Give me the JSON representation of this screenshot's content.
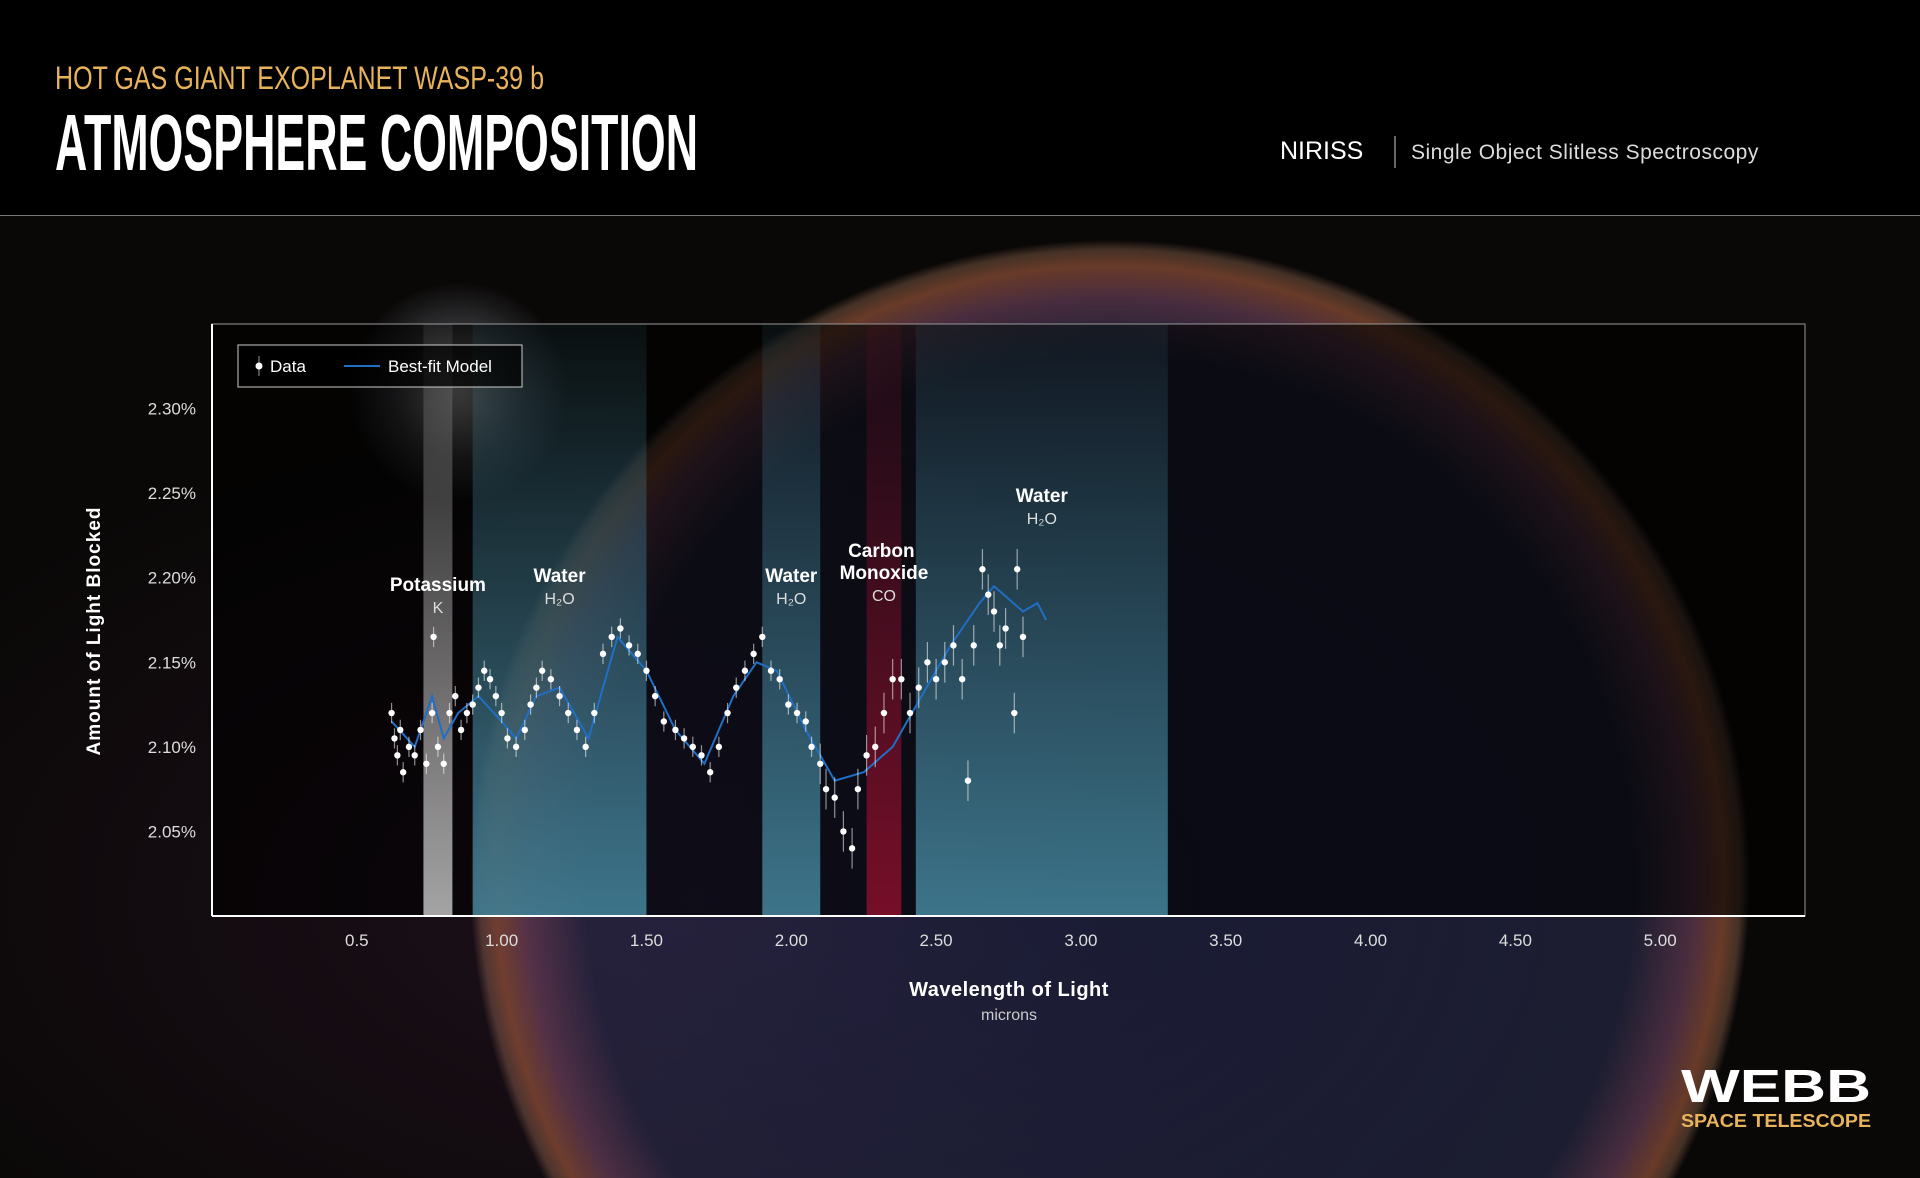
{
  "chart_data": {
    "type": "scatter",
    "subtitle": "HOT GAS GIANT EXOPLANET WASP-39 b",
    "title": "ATMOSPHERE COMPOSITION",
    "instrument": "NIRISS",
    "mode": "Single Object Slitless Spectroscopy",
    "ylabel": "Amount of Light Blocked",
    "xlabel": "Wavelength of Light",
    "xunit": "microns",
    "xlim": [
      0,
      5.5
    ],
    "ylim": [
      2.0,
      2.35
    ],
    "xticks": [
      0.5,
      {
        "value": 1,
        "label": "1.00"
      },
      {
        "value": 1.5,
        "label": "1.50"
      },
      {
        "value": 2,
        "label": "2.00"
      },
      {
        "value": 2.5,
        "label": "2.50"
      },
      {
        "value": 3,
        "label": "3.00"
      },
      {
        "value": 3.5,
        "label": "3.50"
      },
      {
        "value": 4,
        "label": "4.00"
      },
      {
        "value": 4.5,
        "label": "4.50"
      },
      {
        "value": 5,
        "label": "5.00"
      }
    ],
    "yticks": [
      {
        "value": 2.05,
        "label": "2.05%"
      },
      {
        "value": 2.1,
        "label": "2.10%"
      },
      {
        "value": 2.15,
        "label": "2.15%"
      },
      {
        "value": 2.2,
        "label": "2.20%"
      },
      {
        "value": 2.25,
        "label": "2.25%"
      },
      {
        "value": 2.3,
        "label": "2.30%"
      }
    ],
    "legend": "upper left",
    "bands": [
      {
        "label": "Potassium",
        "formula": "K",
        "x": [
          0.73,
          0.83
        ],
        "color": "#d8d8d8"
      },
      {
        "label": "Water",
        "formula": "H₂O",
        "x": [
          0.9,
          1.5
        ],
        "color": "#4d97b0"
      },
      {
        "label": "Water",
        "formula": "H₂O",
        "x": [
          1.9,
          2.1
        ],
        "color": "#4d97b0"
      },
      {
        "label": "Carbon Monoxide",
        "formula": "CO",
        "x": [
          2.26,
          2.38
        ],
        "color": "#9a0f2e"
      },
      {
        "label": "Water",
        "formula": "H₂O",
        "x": [
          2.43,
          3.3
        ],
        "color": "#4d97b0"
      }
    ],
    "series": [
      {
        "name": "Data",
        "color": "#ffffff",
        "x": [
          0.62,
          0.63,
          0.64,
          0.65,
          0.66,
          0.68,
          0.7,
          0.72,
          0.74,
          0.76,
          0.765,
          0.78,
          0.8,
          0.82,
          0.84,
          0.86,
          0.88,
          0.9,
          0.92,
          0.94,
          0.96,
          0.98,
          1.0,
          1.02,
          1.05,
          1.08,
          1.1,
          1.12,
          1.14,
          1.17,
          1.2,
          1.23,
          1.26,
          1.29,
          1.32,
          1.35,
          1.38,
          1.41,
          1.44,
          1.47,
          1.5,
          1.53,
          1.56,
          1.6,
          1.63,
          1.66,
          1.69,
          1.72,
          1.75,
          1.78,
          1.81,
          1.84,
          1.87,
          1.9,
          1.93,
          1.96,
          1.99,
          2.02,
          2.05,
          2.07,
          2.1,
          2.12,
          2.15,
          2.18,
          2.21,
          2.23,
          2.26,
          2.29,
          2.32,
          2.35,
          2.38,
          2.41,
          2.44,
          2.47,
          2.5,
          2.53,
          2.56,
          2.59,
          2.61,
          2.63,
          2.66,
          2.68,
          2.7,
          2.72,
          2.74,
          2.77,
          2.78,
          2.8
        ],
        "values": [
          2.12,
          2.105,
          2.095,
          2.11,
          2.085,
          2.1,
          2.095,
          2.11,
          2.09,
          2.12,
          2.165,
          2.1,
          2.09,
          2.12,
          2.13,
          2.11,
          2.12,
          2.125,
          2.135,
          2.145,
          2.14,
          2.13,
          2.12,
          2.105,
          2.1,
          2.11,
          2.125,
          2.135,
          2.145,
          2.14,
          2.13,
          2.12,
          2.11,
          2.1,
          2.12,
          2.155,
          2.165,
          2.17,
          2.16,
          2.155,
          2.145,
          2.13,
          2.115,
          2.11,
          2.105,
          2.1,
          2.095,
          2.085,
          2.1,
          2.12,
          2.135,
          2.145,
          2.155,
          2.165,
          2.145,
          2.14,
          2.125,
          2.12,
          2.115,
          2.1,
          2.09,
          2.075,
          2.07,
          2.05,
          2.04,
          2.075,
          2.095,
          2.1,
          2.12,
          2.14,
          2.14,
          2.12,
          2.135,
          2.15,
          2.14,
          2.15,
          2.16,
          2.14,
          2.08,
          2.16,
          2.205,
          2.19,
          2.18,
          2.16,
          2.17,
          2.12,
          2.205,
          2.165
        ],
        "errors": [
          0.006,
          0.006,
          0.006,
          0.006,
          0.006,
          0.006,
          0.006,
          0.006,
          0.006,
          0.006,
          0.006,
          0.006,
          0.006,
          0.006,
          0.006,
          0.006,
          0.006,
          0.006,
          0.006,
          0.006,
          0.006,
          0.006,
          0.006,
          0.006,
          0.006,
          0.006,
          0.006,
          0.006,
          0.006,
          0.006,
          0.006,
          0.006,
          0.006,
          0.006,
          0.006,
          0.006,
          0.006,
          0.006,
          0.006,
          0.006,
          0.006,
          0.006,
          0.006,
          0.006,
          0.006,
          0.006,
          0.006,
          0.006,
          0.006,
          0.006,
          0.006,
          0.006,
          0.006,
          0.006,
          0.006,
          0.006,
          0.006,
          0.006,
          0.006,
          0.006,
          0.012,
          0.012,
          0.012,
          0.012,
          0.012,
          0.012,
          0.012,
          0.012,
          0.012,
          0.012,
          0.012,
          0.012,
          0.012,
          0.012,
          0.012,
          0.012,
          0.012,
          0.012,
          0.012,
          0.012,
          0.012,
          0.012,
          0.012,
          0.012,
          0.012,
          0.012,
          0.012,
          0.012
        ]
      },
      {
        "name": "Best-fit Model",
        "color": "#1f6fc5",
        "x": [
          0.62,
          0.7,
          0.76,
          0.8,
          0.85,
          0.92,
          1.0,
          1.05,
          1.12,
          1.2,
          1.3,
          1.4,
          1.5,
          1.6,
          1.7,
          1.8,
          1.88,
          1.95,
          2.05,
          2.15,
          2.25,
          2.35,
          2.45,
          2.55,
          2.65,
          2.7,
          2.8,
          2.85,
          2.88
        ],
        "values": [
          2.115,
          2.1,
          2.13,
          2.105,
          2.12,
          2.13,
          2.115,
          2.105,
          2.13,
          2.135,
          2.105,
          2.165,
          2.145,
          2.11,
          2.09,
          2.13,
          2.15,
          2.145,
          2.11,
          2.08,
          2.085,
          2.1,
          2.13,
          2.16,
          2.185,
          2.195,
          2.18,
          2.185,
          2.175
        ]
      }
    ]
  },
  "logo": {
    "name": "WEBB",
    "tagline": "SPACE TELESCOPE"
  }
}
